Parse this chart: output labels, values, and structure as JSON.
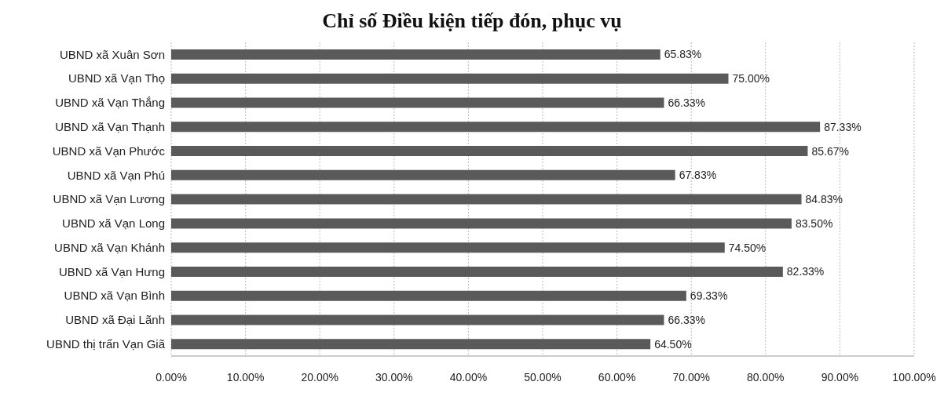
{
  "chart_data": {
    "type": "bar",
    "orientation": "horizontal",
    "title": "Chỉ số Điều kiện tiếp đón, phục vụ",
    "categories": [
      "UBND xã Xuân Sơn",
      "UBND xã Vạn Thọ",
      "UBND xã Vạn Thắng",
      "UBND xã Vạn Thạnh",
      "UBND xã Vạn Phước",
      "UBND xã Vạn Phú",
      "UBND xã Vạn Lương",
      "UBND xã Vạn Long",
      "UBND xã Vạn Khánh",
      "UBND xã Vạn Hưng",
      "UBND xã Vạn Bình",
      "UBND xã Đại Lãnh",
      "UBND thị trấn Vạn Giã"
    ],
    "values": [
      65.83,
      75.0,
      66.33,
      87.33,
      85.67,
      67.83,
      84.83,
      83.5,
      74.5,
      82.33,
      69.33,
      66.33,
      64.5
    ],
    "value_labels": [
      "65.83%",
      "75.00%",
      "66.33%",
      "87.33%",
      "85.67%",
      "67.83%",
      "84.83%",
      "83.50%",
      "74.50%",
      "82.33%",
      "69.33%",
      "66.33%",
      "64.50%"
    ],
    "color": "#5a5a5a",
    "xlim": [
      0,
      100
    ],
    "xticks": [
      {
        "value": 0,
        "label": "0.00%"
      },
      {
        "value": 10,
        "label": "10.00%"
      },
      {
        "value": 20,
        "label": "20.00%"
      },
      {
        "value": 30,
        "label": "30.00%"
      },
      {
        "value": 40,
        "label": "40.00%"
      },
      {
        "value": 50,
        "label": "50.00%"
      },
      {
        "value": 60,
        "label": "60.00%"
      },
      {
        "value": 70,
        "label": "70.00%"
      },
      {
        "value": 80,
        "label": "80.00%"
      },
      {
        "value": 90,
        "label": "90.00%"
      },
      {
        "value": 100,
        "label": "100.00%"
      }
    ],
    "grid": "x"
  }
}
